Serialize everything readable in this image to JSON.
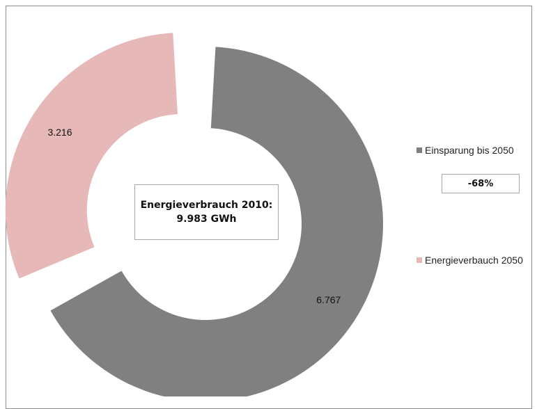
{
  "chart_data": {
    "type": "pie",
    "donut": true,
    "categories": [
      "Einsparung bis 2050",
      "Energieverbauch 2050"
    ],
    "values": [
      6767,
      3216
    ],
    "value_labels": [
      "6.767",
      "3.216"
    ],
    "colors": [
      "#808080",
      "#e6b9b8"
    ],
    "exploded": [
      false,
      true
    ],
    "legend_position": "right"
  },
  "center_box": {
    "line1": "Energieverbrauch 2010:",
    "line2": "9.983 GWh"
  },
  "legend": {
    "items": [
      {
        "label": "Einsparung bis 2050",
        "color": "#808080"
      },
      {
        "label": "Energieverbauch 2050",
        "color": "#e6b9b8"
      }
    ],
    "percent_label": "-68%"
  }
}
